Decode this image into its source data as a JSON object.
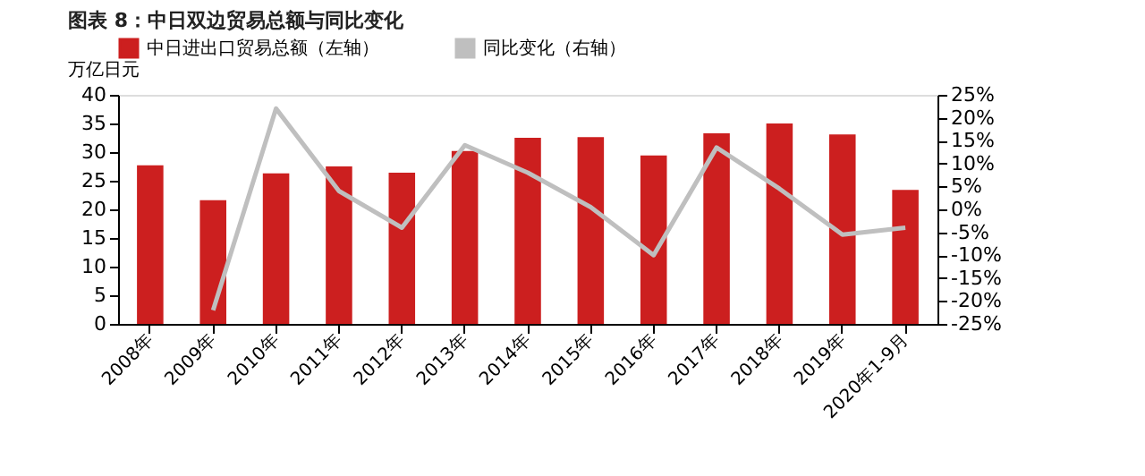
{
  "chart_data": {
    "type": "bar",
    "title": "图表 8：中日双边贸易总额与同比变化",
    "ylabel": "万亿日元",
    "categories": [
      "2008年",
      "2009年",
      "2010年",
      "2011年",
      "2012年",
      "2013年",
      "2014年",
      "2015年",
      "2016年",
      "2017年",
      "2018年",
      "2019年",
      "2020年1-9月"
    ],
    "series": [
      {
        "name": "中日进出口贸易总额（左轴）",
        "color": "#cc1f1f",
        "values": [
          27.7,
          21.6,
          26.3,
          27.5,
          26.4,
          30.2,
          32.5,
          32.6,
          29.4,
          33.3,
          35.0,
          33.1,
          23.4
        ]
      },
      {
        "name": "同比变化（右轴）",
        "type": "line",
        "axis": "y2",
        "color": "#bfbfbf",
        "values": [
          null,
          -22,
          22,
          4,
          -4,
          14,
          8,
          0.5,
          -10,
          13.5,
          4.5,
          -5.5,
          -4
        ]
      }
    ],
    "ylim": [
      0,
      40
    ],
    "yticks": [
      0,
      5,
      10,
      15,
      20,
      25,
      30,
      35,
      40
    ],
    "y2lim": [
      -25,
      25
    ],
    "y2ticks": [
      {
        "value": -25,
        "label": "-25%"
      },
      {
        "value": -20,
        "label": "-20%"
      },
      {
        "value": -15,
        "label": "-15%"
      },
      {
        "value": -10,
        "label": "-10%"
      },
      {
        "value": -5,
        "label": "-5%"
      },
      {
        "value": 0,
        "label": "0%"
      },
      {
        "value": 5,
        "label": "5%"
      },
      {
        "value": 10,
        "label": "10%"
      },
      {
        "value": 15,
        "label": "15%"
      },
      {
        "value": 20,
        "label": "20%"
      },
      {
        "value": 25,
        "label": "25%"
      }
    ],
    "legend": "top",
    "grid": false,
    "marker": "none"
  }
}
